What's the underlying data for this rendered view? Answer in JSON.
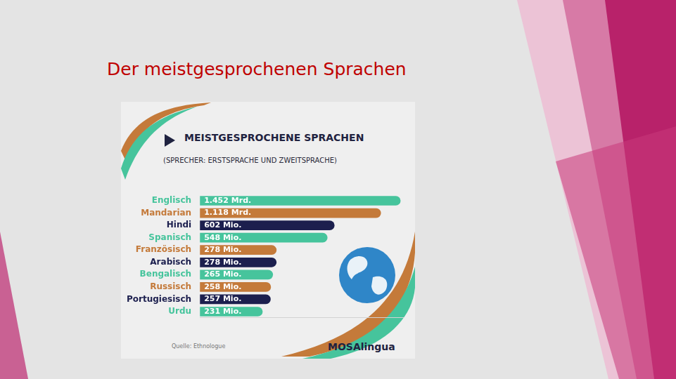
{
  "title": "Der meistgesprochenen Sprachen",
  "chart_data": {
    "type": "bar",
    "orientation": "horizontal",
    "title": "MEISTGESPROCHENE SPRACHEN",
    "subtitle": "(SPRECHER: ERSTSPRACHE UND ZWEITSPRACHE)",
    "categories": [
      "Englisch",
      "Mandarian",
      "Hindi",
      "Spanisch",
      "Französisch",
      "Arabisch",
      "Bengalisch",
      "Russisch",
      "Portugiesisch",
      "Urdu"
    ],
    "values": [
      1452,
      1118,
      602,
      548,
      278,
      278,
      265,
      258,
      257,
      231
    ],
    "value_labels": [
      "1.452 Mrd.",
      "1.118 Mrd.",
      "602 Mio.",
      "548 Mio.",
      "278 Mio.",
      "278 Mio.",
      "265 Mio.",
      "258 Mio.",
      "257 Mio.",
      "231 Mio."
    ],
    "colors": [
      "#46c49c",
      "#c47a3a",
      "#1c1f4e",
      "#46c49c",
      "#c47a3a",
      "#1c1f4e",
      "#46c49c",
      "#c47a3a",
      "#1c1f4e",
      "#46c49c"
    ],
    "xlim": [
      100,
      1500
    ],
    "log": "x",
    "grid": false,
    "tick_labels": "y",
    "data_labels": true,
    "annotations": [
      "Quelle: Ethnologue",
      "MOSAlingua"
    ]
  }
}
